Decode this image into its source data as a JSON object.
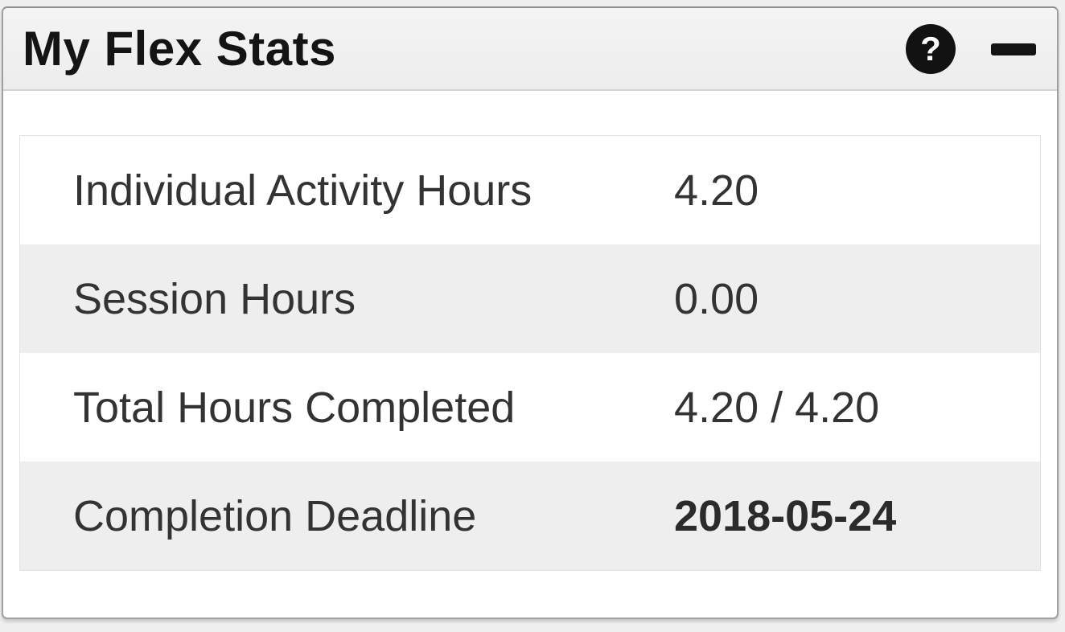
{
  "widget": {
    "title": "My Flex Stats",
    "header": {
      "help_glyph": "?"
    },
    "stats": [
      {
        "label": "Individual Activity Hours",
        "value": "4.20"
      },
      {
        "label": "Session Hours",
        "value": "0.00"
      },
      {
        "label": "Total Hours Completed",
        "value": "4.20 / 4.20"
      },
      {
        "label": "Completion Deadline",
        "value": "2018-05-24"
      }
    ],
    "colors": {
      "header_bg": "#f0f0f0",
      "row_alt_bg": "#eeeeee",
      "border": "#a0a0a0",
      "text": "#333333",
      "icon_bg": "#121212"
    }
  }
}
